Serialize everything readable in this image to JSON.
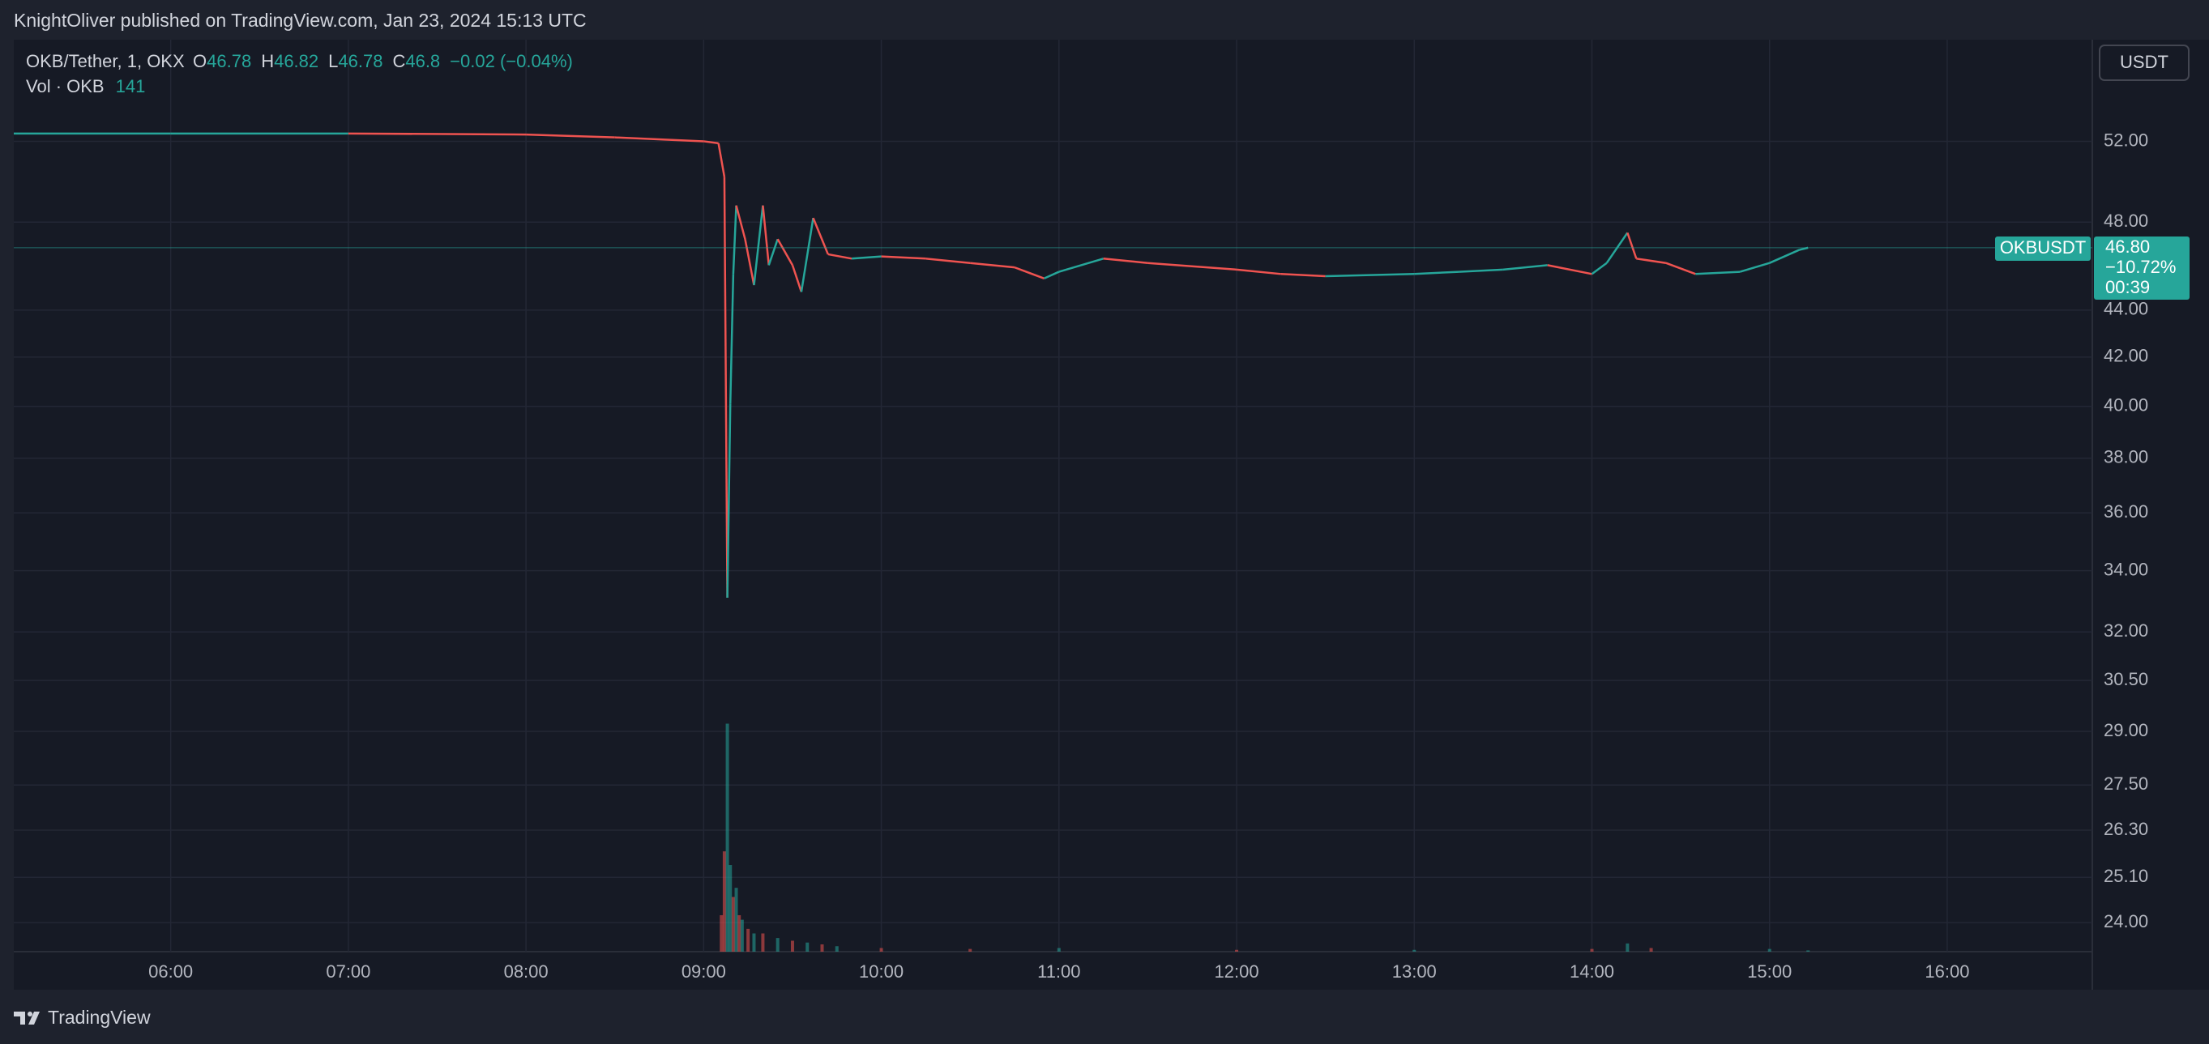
{
  "header": {
    "title": "KnightOliver published on TradingView.com, Jan 23, 2024 15:13 UTC"
  },
  "legend": {
    "symbol": "OKB/Tether, 1, OKX",
    "open_label": "O",
    "open": 46.78,
    "high_label": "H",
    "high": 46.82,
    "low_label": "L",
    "low": 46.78,
    "close_label": "C",
    "close": 46.8,
    "change": "−0.02 (−0.04%)",
    "volume_label": "Vol · OKB",
    "volume": 141
  },
  "currency_button": "USDT",
  "price_label": {
    "symbol": "OKBUSDT",
    "price": "46.80",
    "change": "−10.72%",
    "countdown": "00:39"
  },
  "footer": {
    "brand": "TradingView"
  },
  "chart_data": {
    "type": "line",
    "log_scale": true,
    "grid": true,
    "x": [
      "05:07",
      "06:00",
      "07:00",
      "08:00",
      "08:30",
      "09:00",
      "09:05",
      "09:07",
      "09:08",
      "09:09",
      "09:10",
      "09:11",
      "09:14",
      "09:17",
      "09:20",
      "09:22",
      "09:25",
      "09:30",
      "09:33",
      "09:37",
      "09:42",
      "09:50",
      "10:00",
      "10:15",
      "10:30",
      "10:45",
      "10:55",
      "11:00",
      "11:15",
      "11:30",
      "12:00",
      "12:15",
      "12:30",
      "13:00",
      "13:15",
      "13:30",
      "13:45",
      "14:00",
      "14:05",
      "14:12",
      "14:15",
      "14:25",
      "14:35",
      "14:50",
      "15:00",
      "15:10",
      "15:13"
    ],
    "series": [
      {
        "name": "OKBUSDT",
        "color": "#26a69a",
        "down_color": "#ef5350",
        "values": [
          52.4,
          52.4,
          52.4,
          52.35,
          52.2,
          52.0,
          51.9,
          50.2,
          33.1,
          40.1,
          45.6,
          48.8,
          47.2,
          45.1,
          48.8,
          46.0,
          47.2,
          46.0,
          44.8,
          48.2,
          46.5,
          46.3,
          46.4,
          46.3,
          46.1,
          45.9,
          45.4,
          45.7,
          46.3,
          46.1,
          45.8,
          45.6,
          45.5,
          45.6,
          45.7,
          45.8,
          46.0,
          45.6,
          46.1,
          47.5,
          46.3,
          46.1,
          45.6,
          45.7,
          46.1,
          46.7,
          46.8
        ]
      },
      {
        "name": "Vol · OKB",
        "axis": "y2",
        "x": [
          "09:06",
          "09:07",
          "09:08",
          "09:09",
          "09:10",
          "09:11",
          "09:12",
          "09:13",
          "09:15",
          "09:17",
          "09:20",
          "09:25",
          "09:30",
          "09:35",
          "09:40",
          "09:45",
          "10:00",
          "10:30",
          "11:00",
          "12:00",
          "13:00",
          "14:00",
          "14:12",
          "14:20",
          "15:00",
          "15:13"
        ],
        "colors": [
          "#ef5350",
          "#ef5350",
          "#26a69a",
          "#26a69a",
          "#ef5350",
          "#26a69a",
          "#ef5350",
          "#26a69a",
          "#ef5350",
          "#26a69a",
          "#ef5350",
          "#26a69a",
          "#ef5350",
          "#26a69a",
          "#ef5350",
          "#26a69a",
          "#ef5350",
          "#ef5350",
          "#26a69a",
          "#ef5350",
          "#26a69a",
          "#ef5350",
          "#26a69a",
          "#ef5350",
          "#26a69a",
          "#26a69a"
        ],
        "values": [
          4000,
          11000,
          25000,
          9500,
          6000,
          7000,
          4000,
          3500,
          2500,
          2000,
          2000,
          1500,
          1200,
          1000,
          800,
          600,
          400,
          300,
          400,
          200,
          200,
          300,
          900,
          400,
          300,
          141
        ]
      }
    ],
    "xlim": [
      "05:07",
      "16:49"
    ],
    "xticks": [
      "06:00",
      "07:00",
      "08:00",
      "09:00",
      "10:00",
      "11:00",
      "12:00",
      "13:00",
      "14:00",
      "15:00",
      "16:00"
    ],
    "ylim": [
      23.32,
      57.5
    ],
    "yticks": [
      {
        "value": 24,
        "label": "24.00"
      },
      {
        "value": 25.1,
        "label": "25.10"
      },
      {
        "value": 26.3,
        "label": "26.30"
      },
      {
        "value": 27.5,
        "label": "27.50"
      },
      {
        "value": 29,
        "label": "29.00"
      },
      {
        "value": 30.5,
        "label": "30.50"
      },
      {
        "value": 32,
        "label": "32.00"
      },
      {
        "value": 34,
        "label": "34.00"
      },
      {
        "value": 36,
        "label": "36.00"
      },
      {
        "value": 38,
        "label": "38.00"
      },
      {
        "value": 40,
        "label": "40.00"
      },
      {
        "value": 42,
        "label": "42.00"
      },
      {
        "value": 44,
        "label": "44.00"
      },
      {
        "value": 48,
        "label": "48.00"
      },
      {
        "value": 52,
        "label": "52.00"
      }
    ],
    "y2lim": [
      0,
      100000
    ]
  }
}
